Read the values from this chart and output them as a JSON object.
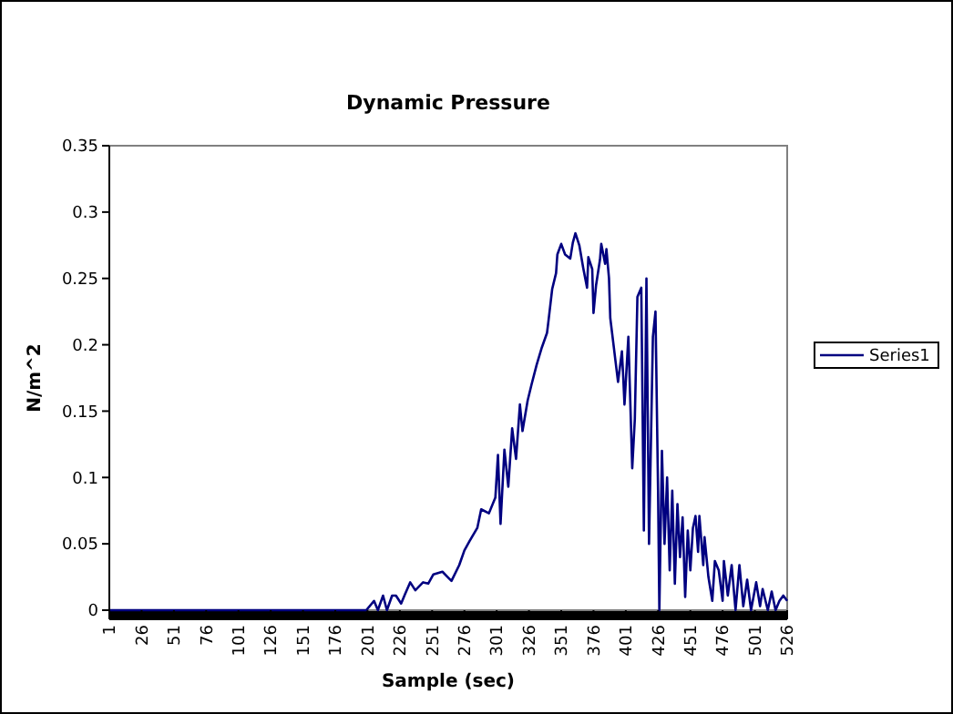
{
  "chart_data": {
    "type": "line",
    "title": "Dynamic Pressure",
    "xlabel": "Sample (sec)",
    "ylabel": "N/m^2",
    "legend": "right",
    "grid": false,
    "marker": "none",
    "line_style": "solid",
    "xlim": [
      1,
      526
    ],
    "xticks": [
      1,
      26,
      51,
      76,
      101,
      126,
      151,
      176,
      201,
      226,
      251,
      276,
      301,
      326,
      351,
      376,
      401,
      426,
      451,
      476,
      501,
      526
    ],
    "ylim": [
      0,
      0.35
    ],
    "yticks": [
      0,
      0.05,
      0.1,
      0.15,
      0.2,
      0.25,
      0.3,
      0.35
    ],
    "x": [
      1,
      60,
      120,
      189,
      200,
      206,
      209,
      213,
      216,
      220,
      223,
      227,
      230,
      234,
      238,
      244,
      248,
      252,
      259,
      263,
      266,
      272,
      276,
      280,
      286,
      289,
      295,
      300,
      302,
      304,
      307,
      310,
      313,
      316,
      319,
      321,
      325,
      328,
      332,
      336,
      340,
      341,
      344,
      347,
      348,
      351,
      354,
      358,
      360,
      362,
      365,
      368,
      371,
      372,
      375,
      376,
      378,
      381,
      382,
      385,
      386,
      388,
      389,
      392,
      393,
      395,
      398,
      399,
      400,
      403,
      406,
      408,
      410,
      413,
      415,
      417,
      419,
      422,
      424,
      426,
      427,
      429,
      431,
      433,
      435,
      437,
      439,
      441,
      443,
      445,
      447,
      449,
      451,
      453,
      455,
      457,
      458,
      461,
      462,
      465,
      468,
      470,
      473,
      476,
      477,
      480,
      483,
      486,
      489,
      492,
      495,
      498,
      502,
      505,
      507,
      511,
      514,
      517,
      520,
      523,
      526
    ],
    "series": [
      {
        "name": "Series1",
        "color": "#000080",
        "values": [
          0,
          0,
          0,
          0,
          0,
          0.007,
          0,
          0.011,
          0,
          0.011,
          0.011,
          0.005,
          0.012,
          0.021,
          0.015,
          0.021,
          0.02,
          0.027,
          0.029,
          0.025,
          0.022,
          0.034,
          0.045,
          0.052,
          0.062,
          0.076,
          0.073,
          0.085,
          0.117,
          0.065,
          0.121,
          0.093,
          0.137,
          0.114,
          0.155,
          0.135,
          0.158,
          0.17,
          0.185,
          0.198,
          0.209,
          0.217,
          0.242,
          0.254,
          0.268,
          0.276,
          0.268,
          0.265,
          0.277,
          0.284,
          0.275,
          0.258,
          0.243,
          0.266,
          0.257,
          0.224,
          0.245,
          0.264,
          0.276,
          0.261,
          0.272,
          0.25,
          0.22,
          0.196,
          0.188,
          0.172,
          0.195,
          0.176,
          0.155,
          0.206,
          0.107,
          0.144,
          0.236,
          0.243,
          0.06,
          0.25,
          0.05,
          0.206,
          0.225,
          0.09,
          0,
          0.12,
          0.05,
          0.1,
          0.03,
          0.09,
          0.02,
          0.08,
          0.04,
          0.07,
          0.01,
          0.06,
          0.03,
          0.062,
          0.071,
          0.044,
          0.071,
          0.034,
          0.055,
          0.025,
          0.007,
          0.037,
          0.03,
          0.007,
          0.037,
          0.011,
          0.034,
          0,
          0.034,
          0.003,
          0.023,
          0,
          0.021,
          0.003,
          0.016,
          0,
          0.014,
          0,
          0.007,
          0.011,
          0.007
        ]
      }
    ]
  }
}
